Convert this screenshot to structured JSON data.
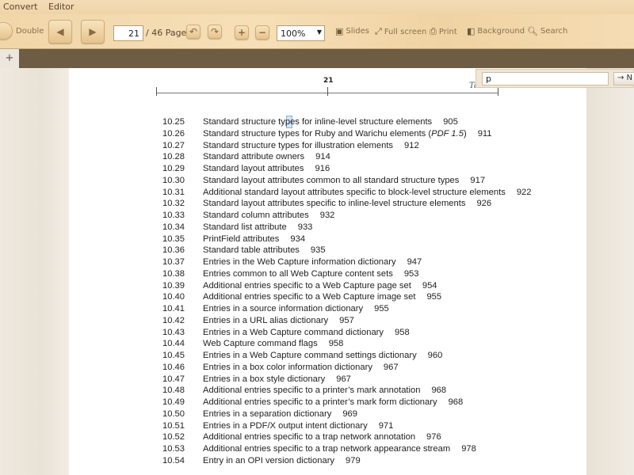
{
  "menu": {
    "convert": "Convert",
    "editor": "Editor"
  },
  "toolbar": {
    "double": "Double",
    "page_current": "21",
    "page_total": "/ 46 Page",
    "zoom": "100%",
    "slides": "Slides",
    "fullscreen": "Full screen",
    "print": "Print",
    "background": "Background",
    "search": "Search"
  },
  "tabbar": {
    "add": "+"
  },
  "search_popup": {
    "value": "p",
    "next": "→ N"
  },
  "page": {
    "header_number": "21",
    "header_title": "Tables",
    "entries": [
      {
        "num": "10.25",
        "title": "Standard structure types for inline-level structure elements",
        "page": "905"
      },
      {
        "num": "10.26",
        "title": "Standard structure types for Ruby and Warichu elements (",
        "italic": "PDF 1.5",
        "after": ")",
        "page": "911"
      },
      {
        "num": "10.27",
        "title": "Standard structure types for illustration elements",
        "page": "912"
      },
      {
        "num": "10.28",
        "title": "Standard attribute owners",
        "page": "914"
      },
      {
        "num": "10.29",
        "title": "Standard layout attributes",
        "page": "916"
      },
      {
        "num": "10.30",
        "title": "Standard layout attributes common to all standard structure types",
        "page": "917"
      },
      {
        "num": "10.31",
        "title": "Additional standard layout attributes specific to block-level structure elements",
        "page": "922"
      },
      {
        "num": "10.32",
        "title": "Standard layout attributes specific to inline-level structure elements",
        "page": "926"
      },
      {
        "num": "10.33",
        "title": "Standard column attributes",
        "page": "932"
      },
      {
        "num": "10.34",
        "title": "Standard list attribute",
        "page": "933"
      },
      {
        "num": "10.35",
        "title": "PrintField attributes",
        "page": "934"
      },
      {
        "num": "10.36",
        "title": "Standard table attributes",
        "page": "935"
      },
      {
        "num": "10.37",
        "title": "Entries in the Web Capture information dictionary",
        "page": "947"
      },
      {
        "num": "10.38",
        "title": "Entries common to all Web Capture content sets",
        "page": "953"
      },
      {
        "num": "10.39",
        "title": "Additional entries specific to a Web Capture page set",
        "page": "954"
      },
      {
        "num": "10.40",
        "title": "Additional entries specific to a Web Capture image set",
        "page": "955"
      },
      {
        "num": "10.41",
        "title": "Entries in a source information dictionary",
        "page": "955"
      },
      {
        "num": "10.42",
        "title": "Entries in a URL alias dictionary",
        "page": "957"
      },
      {
        "num": "10.43",
        "title": "Entries in a Web Capture command dictionary",
        "page": "958"
      },
      {
        "num": "10.44",
        "title": "Web Capture command flags",
        "page": "958"
      },
      {
        "num": "10.45",
        "title": "Entries in a Web Capture command settings dictionary",
        "page": "960"
      },
      {
        "num": "10.46",
        "title": "Entries in a box color information dictionary",
        "page": "967"
      },
      {
        "num": "10.47",
        "title": "Entries in a box style dictionary",
        "page": "967"
      },
      {
        "num": "10.48",
        "title": "Additional entries specific to a printer’s mark annotation",
        "page": "968"
      },
      {
        "num": "10.49",
        "title": "Additional entries specific to a printer’s mark form dictionary",
        "page": "968"
      },
      {
        "num": "10.50",
        "title": "Entries in a separation dictionary",
        "page": "969"
      },
      {
        "num": "10.51",
        "title": "Entries in a PDF/X output intent dictionary",
        "page": "971"
      },
      {
        "num": "10.52",
        "title": "Additional entries specific to a trap network annotation",
        "page": "976"
      },
      {
        "num": "10.53",
        "title": "Additional entries specific to a trap network appearance stream",
        "page": "978"
      },
      {
        "num": "10.54",
        "title": "Entry in an OPI version dictionary",
        "page": "979"
      }
    ]
  }
}
